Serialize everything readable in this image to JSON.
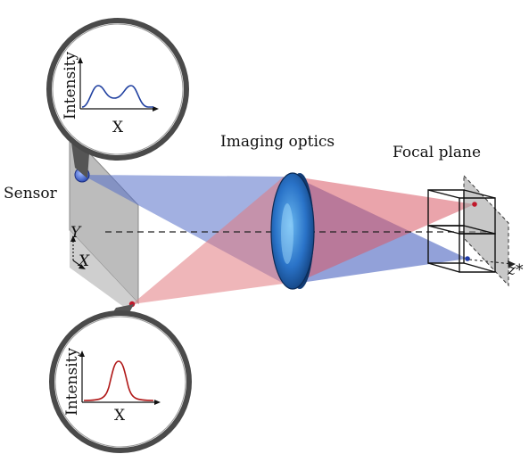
{
  "labels": {
    "imaging_optics": "Imaging optics",
    "focal_plane": "Focal plane",
    "sensor": "Sensor",
    "y_axis": "Y",
    "x_axis": "X",
    "z_axis": "z*"
  },
  "insets": {
    "top": {
      "ylabel": "Intensity",
      "xlabel": "X",
      "curve_color": "#2040a0"
    },
    "bottom": {
      "ylabel": "Intensity",
      "xlabel": "X",
      "curve_color": "#b01818"
    }
  },
  "colors": {
    "blue_beam": "#5570c8",
    "red_beam": "#e27a80",
    "lens": "#2a73c8",
    "sensor": "#bdbdbd"
  }
}
